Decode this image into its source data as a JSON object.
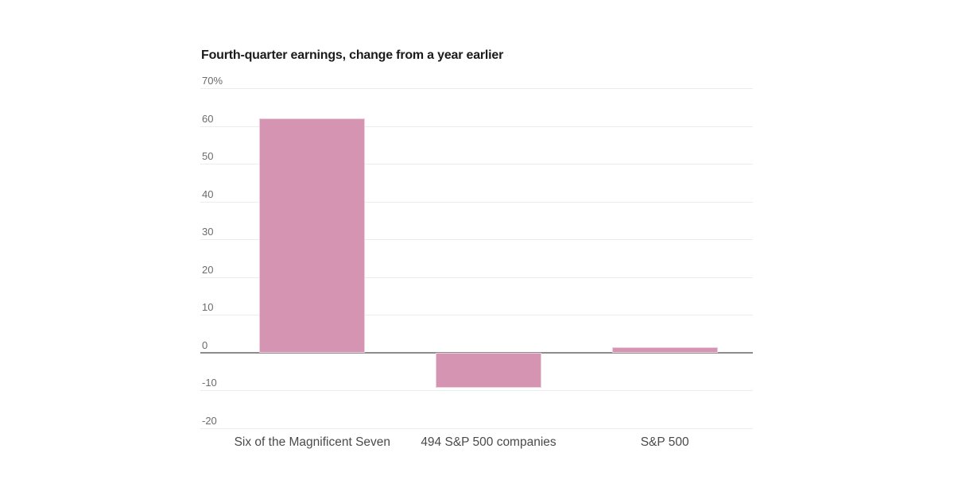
{
  "chart_data": {
    "type": "bar",
    "title": "Fourth-quarter earnings, change from a year earlier",
    "categories": [
      "Six of the Magnificent Seven",
      "494 S&P 500 companies",
      "S&P 500"
    ],
    "values": [
      62,
      -9.3,
      1.5
    ],
    "unit": "%",
    "xlabel": "",
    "ylabel": "",
    "ylim": [
      -20,
      70
    ],
    "yticks": [
      {
        "value": 70,
        "label": "70%"
      },
      {
        "value": 60,
        "label": "60"
      },
      {
        "value": 50,
        "label": "50"
      },
      {
        "value": 40,
        "label": "40"
      },
      {
        "value": 30,
        "label": "30"
      },
      {
        "value": 20,
        "label": "20"
      },
      {
        "value": 10,
        "label": "10"
      },
      {
        "value": 0,
        "label": "0"
      },
      {
        "value": -10,
        "label": "-10"
      },
      {
        "value": -20,
        "label": "-20"
      }
    ],
    "grid": true,
    "legend": false,
    "colors": {
      "bar": "#d494b2",
      "gridline": "#ececec",
      "zero_line": "#8c8c8c",
      "tick_label": "#6b6b6b",
      "category_label": "#4a4a4a",
      "title": "#1b1b1b",
      "background": "#ffffff"
    }
  }
}
